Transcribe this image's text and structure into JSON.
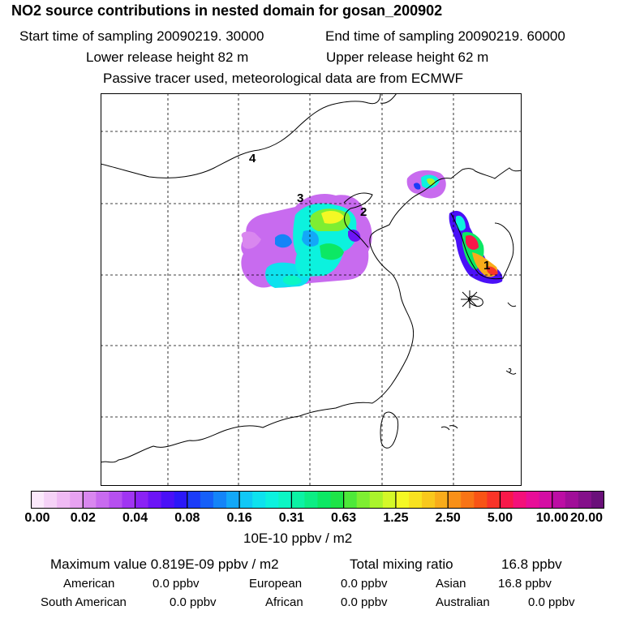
{
  "title": "NO2 source contributions in nested domain for gosan_200902",
  "header": {
    "start_label": "Start time of sampling 20090219. 30000",
    "end_label": "End time of sampling 20090219. 60000",
    "lower_label": "Lower release height   82 m",
    "upper_label": "Upper release height   62 m",
    "note": "Passive tracer used, meteorological data are from ECMWF"
  },
  "map": {
    "source_labels": [
      "1",
      "2",
      "3",
      "4"
    ],
    "receptor_marker": "star-icon"
  },
  "colorbar": {
    "tick_labels": [
      "0.00",
      "0.02",
      "0.04",
      "0.08",
      "0.16",
      "0.31",
      "0.63",
      "1.25",
      "2.50",
      "5.00",
      "10.00",
      "20.00"
    ],
    "units": "10E-10 ppbv / m2",
    "colors": [
      "#fbe9fb",
      "#f5d2f7",
      "#efbaf4",
      "#e7a2f1",
      "#d987ef",
      "#c86bef",
      "#b650f0",
      "#a035f2",
      "#8a22f4",
      "#6c14f6",
      "#4a10f7",
      "#2b18f8",
      "#1b3cf8",
      "#1660f8",
      "#1484f8",
      "#13a8f8",
      "#10c8f6",
      "#0ee2ee",
      "#0cf2de",
      "#0cf6c4",
      "#0cf2a4",
      "#0ced84",
      "#0ce864",
      "#1ee448",
      "#4ee83a",
      "#7eee32",
      "#aaf42c",
      "#d4f828",
      "#f4f824",
      "#f8e220",
      "#f8c81c",
      "#f8ac1a",
      "#f89018",
      "#f87416",
      "#f85416",
      "#f83428",
      "#f8184a",
      "#f4107a",
      "#e80e98",
      "#d40ea4",
      "#bc0ea4",
      "#a00e98",
      "#84108a",
      "#6a107a"
    ]
  },
  "footer": {
    "max_label": "Maximum value  0.819E-09 ppbv / m2",
    "total_label": "Total mixing ratio",
    "total_value": "16.8 ppbv",
    "regions": [
      {
        "name": "American",
        "value": "0.0 ppbv"
      },
      {
        "name": "European",
        "value": "0.0 ppbv"
      },
      {
        "name": "Asian",
        "value": "16.8 ppbv"
      },
      {
        "name": "South American",
        "value": "0.0 ppbv"
      },
      {
        "name": "African",
        "value": "0.0 ppbv"
      },
      {
        "name": "Australian",
        "value": "0.0 ppbv"
      }
    ]
  }
}
